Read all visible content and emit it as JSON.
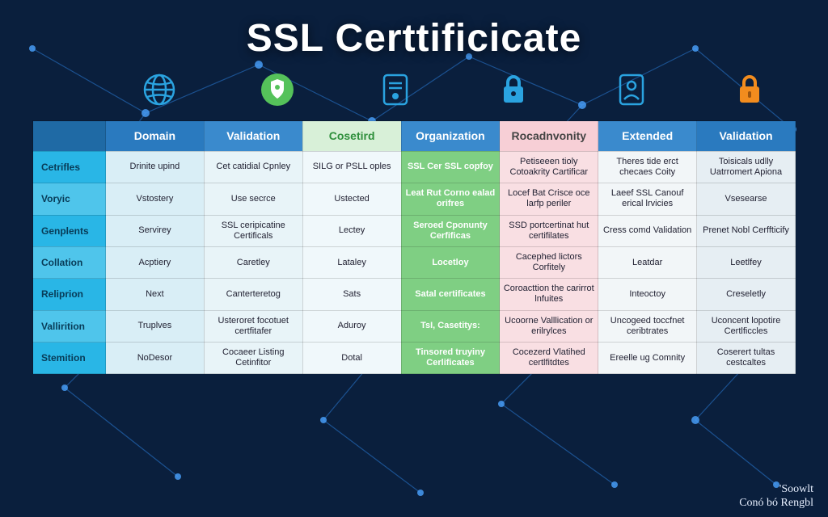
{
  "title": "SSL Certtificicate",
  "colors": {
    "background": "#0a1f3d",
    "network_line": "#2a7ad4",
    "network_node": "#4aa3ff",
    "title_color": "#ffffff",
    "header_bg_1": "#1f6aa5",
    "header_bg_2": "#2a7abf",
    "header_bg_3": "#3a8acd",
    "header_bg_green": "#d8f0d8",
    "header_bg_pink": "#f7cfd6",
    "row_label_bg": "#29b6e6",
    "cell_green_bg": "#7fcf83",
    "cell_pink_bg": "#f9dfe3",
    "globe_icon": "#2aa3e0",
    "shield_icon_bg": "#55c25a",
    "doc_icon": "#2aa3e0",
    "lock1_icon": "#2aa3e0",
    "person_icon": "#2aa3e0",
    "padlock_icon": "#f28c1e"
  },
  "icons": [
    "globe",
    "shield",
    "document",
    "lock",
    "person-badge",
    "padlock"
  ],
  "columns": [
    "",
    "Domain",
    "Validation",
    "Cosetird",
    "Organization",
    "Rocadnvonity",
    "Extended",
    "Validation"
  ],
  "rows": [
    {
      "label": "Cetrifles",
      "cells": [
        "Drinite upind",
        "Cet catidial Cpnley",
        "SILG or PSLL oples",
        "SSL Cer SSL copfoy",
        "Petiseeen tioly Cotoakrity Cartificar",
        "Theres tide erct checaes Coity",
        "Toisicals udlly Uatrromert Apiona"
      ]
    },
    {
      "label": "Voryic",
      "cells": [
        "Vstostery",
        "Use secrce",
        "Ustected",
        "Leat Rut Corno ealad orifres",
        "Locef Bat Crisce oce larfp periler",
        "Laeef SSL Canouf erical lrvicies",
        "Vsesearse"
      ]
    },
    {
      "label": "Genplents",
      "cells": [
        "Servirey",
        "SSL ceripicatine Certificals",
        "Lectey",
        "Seroed Cponunty Cerfificas",
        "SSD portcertinat hut certifilates",
        "Cress comd Validation",
        "Prenet Nobl Cerffticify"
      ]
    },
    {
      "label": "Collation",
      "cells": [
        "Acptiery",
        "Caretley",
        "Lataley",
        "Locetloy",
        "Cacephed lictors Corfitely",
        "Leatdar",
        "Leetlfey"
      ]
    },
    {
      "label": "Reliprion",
      "cells": [
        "Next",
        "Canterteretog",
        "Sats",
        "Satal certificates",
        "Coroacttion the carirrot lnfuites",
        "Inteoctoy",
        "Creseletly"
      ]
    },
    {
      "label": "Vallirition",
      "cells": [
        "Truplves",
        "Usteroret focotuet certfitafer",
        "Aduroy",
        "TsI, Casetitys:",
        "Ucoorne Valllication or erilrylces",
        "Uncogeed toccfnet ceribtrates",
        "Uconcent lopotire Certlficcles"
      ]
    },
    {
      "label": "Stemition",
      "cells": [
        "NoDesor",
        "Cocaeer Listing Cetinfitor",
        "Dotal",
        "Tinsored truyiny Cerlificates",
        "Cocezerd Vlatihed certlfitdtes",
        "Ereelle ug Comnity",
        "Coserert tultas cestcaltes"
      ]
    }
  ],
  "signature": {
    "line1": "'Soowlt",
    "line2": "Conó bó Rengbl"
  }
}
